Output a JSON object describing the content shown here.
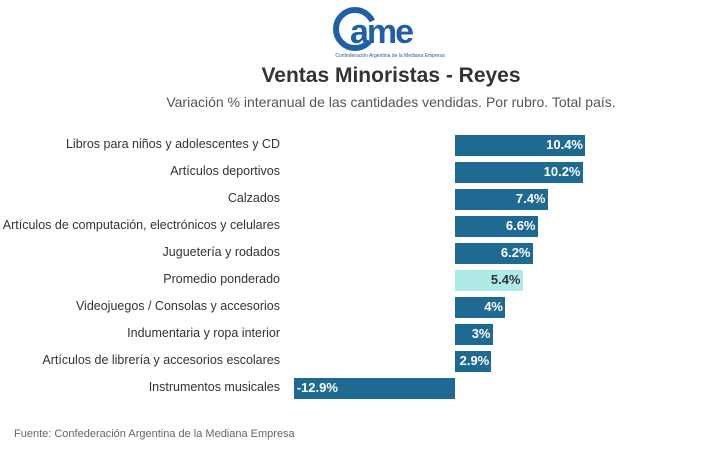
{
  "logo": {
    "text": "came",
    "tagline": "Confederación Argentina de la Mediana Empresa",
    "color": "#1f5fa8"
  },
  "chart_data": {
    "type": "bar",
    "orientation": "horizontal",
    "title": "Ventas Minoristas - Reyes",
    "subtitle": "Variación % interanual de las cantidades vendidas. Por rubro. Total país.",
    "categories": [
      "Libros para niños y adolescentes y CD",
      "Artículos deportivos",
      "Calzados",
      "Artículos de computación, electrónicos y celulares",
      "Juguetería y rodados",
      "Promedio ponderado",
      "Videojuegos / Consolas y accesorios",
      "Indumentaria y ropa interior",
      "Artículos de librería y accesorios escolares",
      "Instrumentos musicales"
    ],
    "values": [
      10.4,
      10.2,
      7.4,
      6.6,
      6.2,
      5.4,
      4,
      3,
      2.9,
      -12.9
    ],
    "labels": [
      "10.4%",
      "10.2%",
      "7.4%",
      "6.6%",
      "6.2%",
      "5.4%",
      "4%",
      "3%",
      "2.9%",
      "-12.9%"
    ],
    "highlight_index": 5,
    "colors": {
      "default": "#1f6a93",
      "highlight": "#aeeae6",
      "label_on_dark": "#ffffff",
      "label_on_light": "#333333"
    },
    "xlabel": "",
    "ylabel": "",
    "xlim": [
      -12.9,
      10.4
    ],
    "grid": false,
    "legend": "none"
  },
  "footer": {
    "source": "Fuente: Confederación Argentina de la Mediana Empresa"
  }
}
